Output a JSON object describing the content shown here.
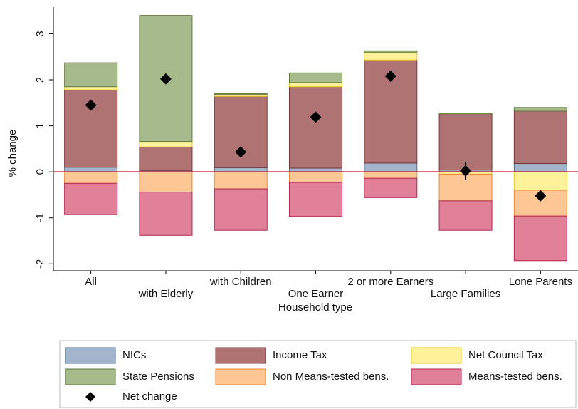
{
  "chart_data": {
    "type": "bar",
    "stacked": true,
    "x_label": "Household type",
    "y_label": "% change",
    "categories": [
      "All",
      "with Elderly",
      "with Children",
      "One Earner",
      "2 or more Earners",
      "Large Families",
      "Lone Parents"
    ],
    "ylim": [
      -2.15,
      3.58
    ],
    "yticks": [
      -2,
      -1,
      0,
      1,
      2,
      3
    ],
    "zero_line_color": "#c8102e",
    "series": [
      {
        "name": "NICs",
        "color": "#a3b5cc",
        "border": "#4f6f93",
        "values": [
          0.1,
          0.03,
          0.09,
          0.08,
          0.19,
          0.04,
          0.18
        ]
      },
      {
        "name": "Income Tax",
        "color": "#b07373",
        "border": "#7a3535",
        "values": [
          1.68,
          0.51,
          1.55,
          1.77,
          2.24,
          1.22,
          1.14
        ]
      },
      {
        "name": "Net Council Tax",
        "color": "#fff29a",
        "border": "#e8c820",
        "values": [
          0.07,
          0.12,
          0.04,
          0.09,
          0.17,
          -0.05,
          -0.4
        ]
      },
      {
        "name": "State Pensions",
        "color": "#a6ba8c",
        "border": "#5f7d3e",
        "values": [
          0.52,
          2.74,
          0.02,
          0.21,
          0.03,
          0.02,
          0.08
        ]
      },
      {
        "name": "Non Means-tested bens.",
        "color": "#fcc795",
        "border": "#f0862a",
        "values": [
          -0.25,
          -0.44,
          -0.37,
          -0.23,
          -0.14,
          -0.58,
          -0.56
        ]
      },
      {
        "name": "Means-tested bens.",
        "color": "#e08199",
        "border": "#b5244f",
        "values": [
          -0.68,
          -0.94,
          -0.9,
          -0.74,
          -0.42,
          -0.64,
          -0.97
        ]
      }
    ],
    "net": {
      "name": "Net change",
      "color": "#000000",
      "values": [
        1.45,
        2.02,
        0.43,
        1.19,
        2.08,
        0.02,
        -0.52
      ],
      "errors": [
        0,
        0,
        0,
        0,
        0,
        0.2,
        0
      ]
    }
  }
}
